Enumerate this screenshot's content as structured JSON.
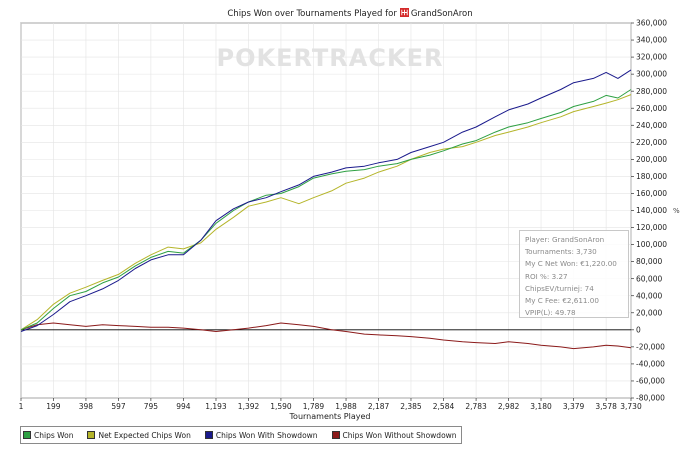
{
  "title": "Chips Won over Tournaments Played for",
  "player_name": "GrandSonAron",
  "watermark": "POKERTRACKER",
  "x_axis_title": "Tournaments Played",
  "percent_mark": "%",
  "stats": [
    "Player: GrandSonAron",
    "Tournaments: 3,730",
    "My C Net Won: €1,220.00",
    "ROI %: 3.27",
    "ChipsEV/turniej: 74",
    "My C Fee: €2,611.00",
    "VPIP(L): 49.78"
  ],
  "legend": [
    {
      "label": "Chips Won",
      "color": "#2ea043"
    },
    {
      "label": "Net Expected Chips Won",
      "color": "#b5b52a"
    },
    {
      "label": "Chips Won With Showdown",
      "color": "#1a1a8c"
    },
    {
      "label": "Chips Won Without Showdown",
      "color": "#8b1a1a"
    }
  ],
  "chart_data": {
    "type": "line",
    "title": "Chips Won over Tournaments Played for GrandSonAron",
    "xlabel": "Tournaments Played",
    "ylabel": "",
    "xlim": [
      1,
      3730
    ],
    "ylim": [
      -80000,
      360000
    ],
    "x_ticks": [
      1,
      199,
      398,
      597,
      795,
      994,
      1193,
      1392,
      1590,
      1789,
      1988,
      2187,
      2385,
      2584,
      2783,
      2982,
      3180,
      3379,
      3578,
      3730
    ],
    "x_tick_labels": [
      "1",
      "199",
      "398",
      "597",
      "795",
      "994",
      "1,193",
      "1,392",
      "1,590",
      "1,789",
      "1,988",
      "2,187",
      "2,385",
      "2,584",
      "2,783",
      "2,982",
      "3,180",
      "3,379",
      "3,578",
      "3,730"
    ],
    "y_ticks": [
      -80000,
      -60000,
      -40000,
      -20000,
      0,
      20000,
      40000,
      60000,
      80000,
      100000,
      120000,
      140000,
      160000,
      180000,
      200000,
      220000,
      240000,
      260000,
      280000,
      300000,
      320000,
      340000,
      360000
    ],
    "y_tick_labels": [
      "-80,000",
      "-60,000",
      "-40,000",
      "-20,000",
      "0",
      "20,000",
      "40,000",
      "60,000",
      "80,000",
      "100,000",
      "120,000",
      "140,000",
      "160,000",
      "180,000",
      "200,000",
      "220,000",
      "240,000",
      "260,000",
      "280,000",
      "300,000",
      "320,000",
      "340,000",
      "360,000"
    ],
    "grid": true,
    "legend_position": "bottom",
    "x": [
      1,
      100,
      199,
      300,
      398,
      500,
      597,
      700,
      795,
      900,
      994,
      1100,
      1193,
      1300,
      1392,
      1500,
      1590,
      1700,
      1789,
      1900,
      1988,
      2100,
      2187,
      2300,
      2385,
      2500,
      2584,
      2700,
      2783,
      2900,
      2982,
      3100,
      3180,
      3300,
      3379,
      3500,
      3578,
      3650,
      3730
    ],
    "series": [
      {
        "name": "Chips Won",
        "color": "#2ea043",
        "values": [
          0,
          8000,
          25000,
          40000,
          45000,
          55000,
          62000,
          75000,
          85000,
          92000,
          90000,
          105000,
          125000,
          140000,
          150000,
          158000,
          160000,
          168000,
          178000,
          183000,
          186000,
          188000,
          192000,
          195000,
          200000,
          205000,
          210000,
          218000,
          222000,
          232000,
          238000,
          243000,
          248000,
          255000,
          262000,
          268000,
          275000,
          272000,
          282000
        ]
      },
      {
        "name": "Net Expected Chips Won",
        "color": "#b5b52a",
        "values": [
          0,
          12000,
          30000,
          43000,
          50000,
          58000,
          65000,
          78000,
          88000,
          97000,
          95000,
          102000,
          118000,
          132000,
          145000,
          150000,
          155000,
          148000,
          155000,
          163000,
          172000,
          178000,
          185000,
          192000,
          200000,
          208000,
          212000,
          215000,
          220000,
          228000,
          232000,
          238000,
          243000,
          250000,
          256000,
          262000,
          266000,
          270000,
          276000
        ]
      },
      {
        "name": "Chips Won With Showdown",
        "color": "#1a1a8c",
        "values": [
          -2000,
          5000,
          18000,
          33000,
          40000,
          48000,
          58000,
          72000,
          82000,
          88000,
          88000,
          105000,
          128000,
          142000,
          150000,
          155000,
          162000,
          170000,
          180000,
          185000,
          190000,
          192000,
          196000,
          200000,
          208000,
          215000,
          220000,
          232000,
          238000,
          250000,
          258000,
          265000,
          272000,
          282000,
          290000,
          295000,
          302000,
          295000,
          305000
        ]
      },
      {
        "name": "Chips Won Without Showdown",
        "color": "#8b1a1a",
        "values": [
          0,
          6000,
          8000,
          6000,
          4000,
          6000,
          5000,
          4000,
          3000,
          3000,
          2000,
          0,
          -2000,
          0,
          2000,
          5000,
          8000,
          6000,
          4000,
          0,
          -2000,
          -5000,
          -6000,
          -7000,
          -8000,
          -10000,
          -12000,
          -14000,
          -15000,
          -16000,
          -14000,
          -16000,
          -18000,
          -20000,
          -22000,
          -20000,
          -18000,
          -19000,
          -21000
        ]
      }
    ]
  }
}
